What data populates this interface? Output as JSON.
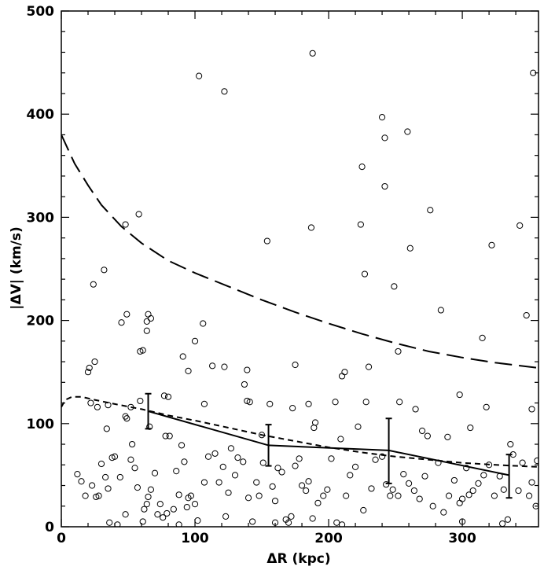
{
  "chart_data": {
    "type": "scatter",
    "title": "",
    "xlabel": "ΔR (kpc)",
    "ylabel": "|ΔV| (km/s)",
    "xlim": [
      0,
      357
    ],
    "ylim": [
      0,
      500
    ],
    "xticks": [
      0,
      100,
      200,
      300
    ],
    "yticks": [
      0,
      100,
      200,
      300,
      400,
      500
    ],
    "grid": false,
    "legend": "none",
    "colors": {
      "axis": "#000000",
      "marker": "#000000",
      "background": "#ffffff"
    },
    "points": [
      [
        103,
        437
      ],
      [
        122,
        422
      ],
      [
        188,
        459
      ],
      [
        240,
        397
      ],
      [
        242,
        377
      ],
      [
        259,
        383
      ],
      [
        225,
        349
      ],
      [
        242,
        330
      ],
      [
        353,
        440
      ],
      [
        276,
        307
      ],
      [
        261,
        270
      ],
      [
        322,
        273
      ],
      [
        343,
        292
      ],
      [
        224,
        293
      ],
      [
        187,
        290
      ],
      [
        154,
        277
      ],
      [
        227,
        245
      ],
      [
        249,
        233
      ],
      [
        48,
        293
      ],
      [
        58,
        303
      ],
      [
        32,
        249
      ],
      [
        24,
        235
      ],
      [
        348,
        205
      ],
      [
        315,
        183
      ],
      [
        284,
        210
      ],
      [
        252,
        170
      ],
      [
        49,
        206
      ],
      [
        64,
        199
      ],
      [
        65,
        206
      ],
      [
        67,
        202
      ],
      [
        45,
        198
      ],
      [
        106,
        197
      ],
      [
        100,
        180
      ],
      [
        91,
        165
      ],
      [
        95,
        151
      ],
      [
        113,
        156
      ],
      [
        122,
        155
      ],
      [
        139,
        152
      ],
      [
        59,
        170
      ],
      [
        61,
        171
      ],
      [
        64,
        190
      ],
      [
        25,
        160
      ],
      [
        21,
        154
      ],
      [
        20,
        150
      ],
      [
        175,
        157
      ],
      [
        212,
        150
      ],
      [
        210,
        146
      ],
      [
        230,
        155
      ],
      [
        253,
        121
      ],
      [
        265,
        114
      ],
      [
        298,
        128
      ],
      [
        318,
        116
      ],
      [
        352,
        114
      ],
      [
        336,
        80
      ],
      [
        22,
        120
      ],
      [
        27,
        116
      ],
      [
        35,
        118
      ],
      [
        59,
        122
      ],
      [
        66,
        97
      ],
      [
        80,
        126
      ],
      [
        77,
        127
      ],
      [
        107,
        119
      ],
      [
        137,
        138
      ],
      [
        139,
        122
      ],
      [
        141,
        121
      ],
      [
        156,
        119
      ],
      [
        173,
        115
      ],
      [
        185,
        119
      ],
      [
        190,
        101
      ],
      [
        189,
        96
      ],
      [
        205,
        121
      ],
      [
        209,
        85
      ],
      [
        222,
        97
      ],
      [
        228,
        121
      ],
      [
        270,
        93
      ],
      [
        274,
        88
      ],
      [
        289,
        87
      ],
      [
        306,
        96
      ],
      [
        34,
        95
      ],
      [
        48,
        107
      ],
      [
        52,
        116
      ],
      [
        33,
        48
      ],
      [
        28,
        30
      ],
      [
        35,
        37
      ],
      [
        38,
        67
      ],
      [
        40,
        68
      ],
      [
        44,
        48
      ],
      [
        48,
        12
      ],
      [
        49,
        105
      ],
      [
        52,
        65
      ],
      [
        53,
        80
      ],
      [
        55,
        57
      ],
      [
        57,
        38
      ],
      [
        62,
        17
      ],
      [
        64,
        22
      ],
      [
        65,
        29
      ],
      [
        67,
        36
      ],
      [
        70,
        52
      ],
      [
        72,
        12
      ],
      [
        74,
        22
      ],
      [
        76,
        9
      ],
      [
        78,
        88
      ],
      [
        79,
        13
      ],
      [
        81,
        88
      ],
      [
        84,
        17
      ],
      [
        86,
        54
      ],
      [
        88,
        31
      ],
      [
        90,
        79
      ],
      [
        92,
        63
      ],
      [
        94,
        19
      ],
      [
        95,
        28
      ],
      [
        97,
        30
      ],
      [
        100,
        22
      ],
      [
        102,
        6
      ],
      [
        107,
        43
      ],
      [
        110,
        68
      ],
      [
        115,
        71
      ],
      [
        118,
        43
      ],
      [
        121,
        58
      ],
      [
        123,
        10
      ],
      [
        125,
        33
      ],
      [
        127,
        76
      ],
      [
        130,
        50
      ],
      [
        132,
        67
      ],
      [
        136,
        63
      ],
      [
        140,
        28
      ],
      [
        143,
        5
      ],
      [
        146,
        43
      ],
      [
        148,
        30
      ],
      [
        150,
        89
      ],
      [
        151,
        62
      ],
      [
        158,
        39
      ],
      [
        160,
        25
      ],
      [
        162,
        57
      ],
      [
        165,
        53
      ],
      [
        168,
        7
      ],
      [
        170,
        4
      ],
      [
        172,
        10
      ],
      [
        175,
        59
      ],
      [
        178,
        66
      ],
      [
        180,
        40
      ],
      [
        183,
        35
      ],
      [
        185,
        44
      ],
      [
        188,
        8
      ],
      [
        192,
        23
      ],
      [
        196,
        30
      ],
      [
        199,
        36
      ],
      [
        202,
        66
      ],
      [
        206,
        4
      ],
      [
        213,
        30
      ],
      [
        216,
        50
      ],
      [
        220,
        58
      ],
      [
        226,
        16
      ],
      [
        232,
        37
      ],
      [
        235,
        65
      ],
      [
        240,
        68
      ],
      [
        243,
        41
      ],
      [
        246,
        30
      ],
      [
        248,
        36
      ],
      [
        252,
        30
      ],
      [
        256,
        51
      ],
      [
        260,
        42
      ],
      [
        264,
        35
      ],
      [
        268,
        27
      ],
      [
        272,
        49
      ],
      [
        278,
        20
      ],
      [
        282,
        62
      ],
      [
        286,
        14
      ],
      [
        290,
        30
      ],
      [
        294,
        45
      ],
      [
        298,
        23
      ],
      [
        300,
        27
      ],
      [
        303,
        57
      ],
      [
        305,
        31
      ],
      [
        308,
        35
      ],
      [
        312,
        42
      ],
      [
        316,
        50
      ],
      [
        320,
        60
      ],
      [
        324,
        30
      ],
      [
        328,
        49
      ],
      [
        331,
        36
      ],
      [
        334,
        7
      ],
      [
        338,
        70
      ],
      [
        342,
        35
      ],
      [
        345,
        62
      ],
      [
        350,
        30
      ],
      [
        352,
        43
      ],
      [
        355,
        20
      ],
      [
        356,
        64
      ],
      [
        12,
        51
      ],
      [
        15,
        44
      ],
      [
        18,
        30
      ],
      [
        23,
        40
      ],
      [
        26,
        29
      ],
      [
        30,
        61
      ],
      [
        36,
        4
      ],
      [
        42,
        2
      ],
      [
        61,
        5
      ],
      [
        88,
        2
      ],
      [
        160,
        4
      ],
      [
        210,
        2
      ],
      [
        300,
        5
      ],
      [
        330,
        3
      ]
    ],
    "lines": [
      {
        "style": "long-dashed",
        "values": [
          [
            0,
            380
          ],
          [
            5,
            366
          ],
          [
            10,
            352
          ],
          [
            20,
            331
          ],
          [
            30,
            312
          ],
          [
            45,
            291
          ],
          [
            60,
            275
          ],
          [
            80,
            258
          ],
          [
            100,
            246
          ],
          [
            125,
            233
          ],
          [
            150,
            220
          ],
          [
            175,
            208
          ],
          [
            200,
            197
          ],
          [
            225,
            187
          ],
          [
            250,
            178
          ],
          [
            275,
            170
          ],
          [
            300,
            164
          ],
          [
            325,
            159
          ],
          [
            357,
            154
          ]
        ]
      },
      {
        "style": "short-dashed",
        "values": [
          [
            0,
            116
          ],
          [
            3,
            123
          ],
          [
            8,
            126
          ],
          [
            15,
            126
          ],
          [
            25,
            123
          ],
          [
            40,
            119
          ],
          [
            60,
            114
          ],
          [
            80,
            108
          ],
          [
            100,
            103
          ],
          [
            125,
            96
          ],
          [
            150,
            89
          ],
          [
            175,
            83
          ],
          [
            200,
            77
          ],
          [
            225,
            72
          ],
          [
            250,
            68
          ],
          [
            275,
            65
          ],
          [
            300,
            62
          ],
          [
            325,
            60
          ],
          [
            357,
            58
          ]
        ]
      },
      {
        "style": "solid",
        "values": [
          [
            65,
            112
          ],
          [
            155,
            79
          ],
          [
            245,
            74
          ],
          [
            335,
            50
          ]
        ]
      }
    ],
    "error_bars": [
      {
        "x": 65,
        "y": 112,
        "low": 95,
        "high": 129
      },
      {
        "x": 155,
        "y": 79,
        "low": 59,
        "high": 99
      },
      {
        "x": 245,
        "y": 74,
        "low": 42,
        "high": 105
      },
      {
        "x": 335,
        "y": 50,
        "low": 28,
        "high": 70
      }
    ]
  }
}
